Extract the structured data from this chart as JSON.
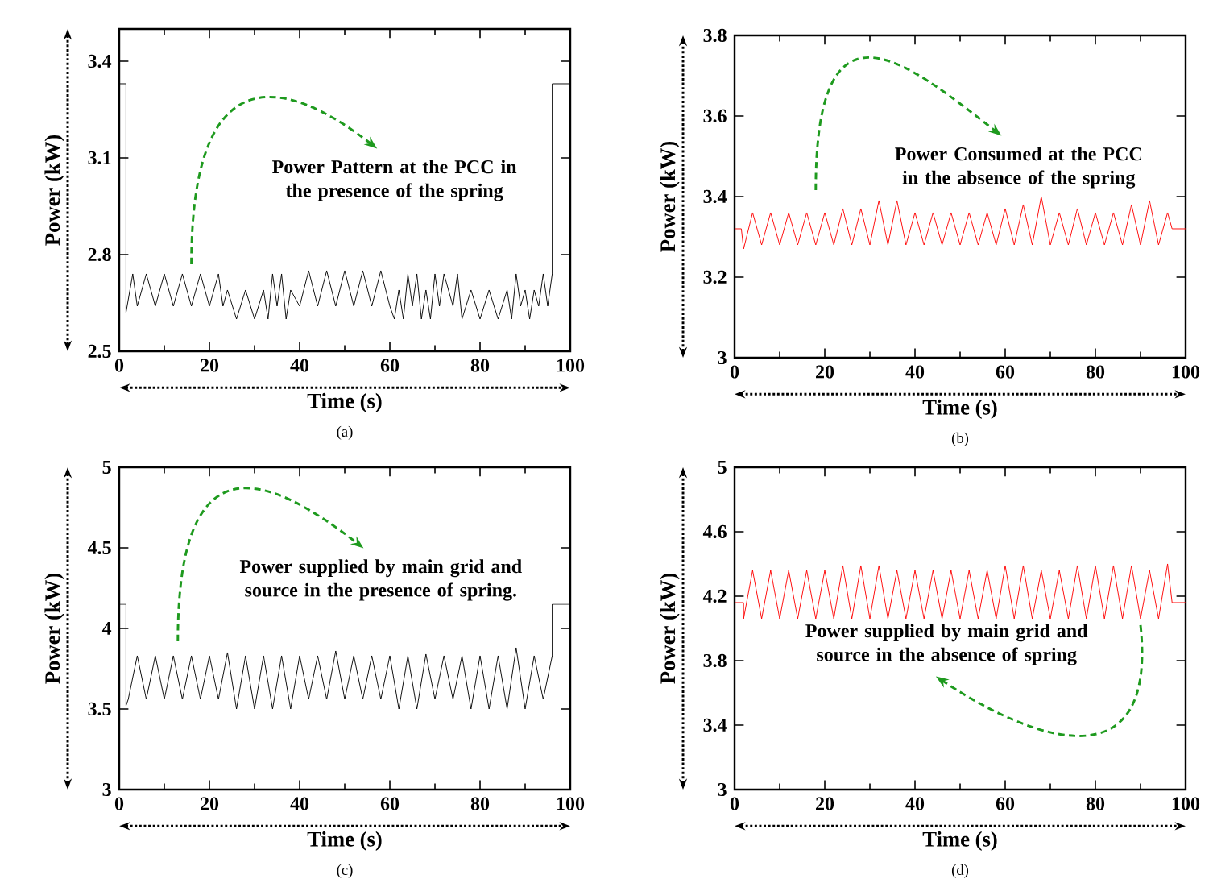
{
  "chart_data": [
    {
      "type": "line",
      "xlabel": "Time (s)",
      "ylabel": "Power (kW)",
      "xlim": [
        0,
        100
      ],
      "ylim": [
        2.5,
        3.5
      ],
      "xticks": [
        0,
        20,
        40,
        60,
        80,
        100
      ],
      "yticks": [
        2.5,
        2.8,
        3.1,
        3.4
      ],
      "series": [
        {
          "color": "#000000",
          "x": [
            0,
            1.5,
            1.5,
            3,
            4,
            6,
            8,
            10,
            12,
            14,
            16,
            18,
            20,
            22,
            23,
            24,
            26,
            28,
            30,
            32,
            33,
            34,
            35,
            36,
            37,
            38,
            40,
            42,
            44,
            46,
            48,
            50,
            52,
            54,
            56,
            58,
            60,
            61,
            62,
            63,
            64,
            65,
            66,
            67,
            68,
            69,
            70,
            71,
            72,
            74,
            75,
            76,
            78,
            80,
            82,
            84,
            86,
            87,
            88,
            89,
            90,
            91,
            92,
            93,
            94,
            95,
            96,
            96,
            100
          ],
          "values": [
            3.33,
            3.33,
            2.62,
            2.74,
            2.64,
            2.74,
            2.64,
            2.74,
            2.64,
            2.74,
            2.64,
            2.74,
            2.64,
            2.74,
            2.64,
            2.69,
            2.6,
            2.69,
            2.6,
            2.69,
            2.6,
            2.74,
            2.64,
            2.74,
            2.6,
            2.69,
            2.64,
            2.75,
            2.64,
            2.75,
            2.64,
            2.75,
            2.64,
            2.75,
            2.64,
            2.75,
            2.64,
            2.6,
            2.69,
            2.6,
            2.74,
            2.64,
            2.74,
            2.6,
            2.69,
            2.6,
            2.74,
            2.64,
            2.74,
            2.64,
            2.74,
            2.6,
            2.69,
            2.6,
            2.69,
            2.6,
            2.69,
            2.6,
            2.74,
            2.64,
            2.69,
            2.6,
            2.69,
            2.64,
            2.74,
            2.64,
            2.74,
            3.33,
            3.33
          ]
        }
      ],
      "annotations": [
        "Power Pattern at the PCC in the presence of the spring",
        "(a)"
      ]
    },
    {
      "type": "line",
      "xlabel": "Time (s)",
      "ylabel": "Power (kW)",
      "xlim": [
        0,
        100
      ],
      "ylim": [
        3,
        3.8
      ],
      "xticks": [
        0,
        20,
        40,
        60,
        80,
        100
      ],
      "yticks": [
        3,
        3.2,
        3.4,
        3.6,
        3.8
      ],
      "series": [
        {
          "color": "#ff0000",
          "x": [
            0,
            1.5,
            2,
            4,
            6,
            8,
            10,
            12,
            14,
            16,
            18,
            20,
            22,
            24,
            26,
            28,
            30,
            32,
            34,
            36,
            38,
            40,
            42,
            44,
            46,
            48,
            50,
            52,
            54,
            56,
            58,
            60,
            62,
            64,
            66,
            68,
            70,
            72,
            74,
            76,
            78,
            80,
            82,
            84,
            86,
            88,
            90,
            92,
            94,
            96,
            97,
            100
          ],
          "values": [
            3.32,
            3.32,
            3.27,
            3.36,
            3.28,
            3.36,
            3.28,
            3.36,
            3.28,
            3.36,
            3.28,
            3.36,
            3.28,
            3.37,
            3.28,
            3.37,
            3.28,
            3.39,
            3.28,
            3.39,
            3.28,
            3.36,
            3.28,
            3.36,
            3.28,
            3.36,
            3.28,
            3.36,
            3.28,
            3.36,
            3.28,
            3.37,
            3.28,
            3.38,
            3.28,
            3.4,
            3.28,
            3.36,
            3.28,
            3.37,
            3.28,
            3.36,
            3.28,
            3.36,
            3.28,
            3.38,
            3.28,
            3.39,
            3.28,
            3.36,
            3.32,
            3.32
          ]
        }
      ],
      "annotations": [
        "Power Consumed at the PCC in the absence of the spring",
        "(b)"
      ]
    },
    {
      "type": "line",
      "xlabel": "Time (s)",
      "ylabel": "Power (kW)",
      "xlim": [
        0,
        100
      ],
      "ylim": [
        3,
        5
      ],
      "xticks": [
        0,
        20,
        40,
        60,
        80,
        100
      ],
      "yticks": [
        3,
        3.5,
        4,
        4.5,
        5
      ],
      "series": [
        {
          "color": "#000000",
          "x": [
            0,
            1.5,
            1.5,
            2,
            4,
            6,
            8,
            10,
            12,
            14,
            16,
            18,
            20,
            22,
            24,
            26,
            28,
            30,
            32,
            34,
            36,
            38,
            40,
            42,
            44,
            46,
            48,
            50,
            52,
            54,
            56,
            58,
            60,
            62,
            64,
            66,
            68,
            70,
            72,
            74,
            76,
            78,
            80,
            82,
            84,
            86,
            88,
            90,
            92,
            94,
            96,
            96,
            100
          ],
          "values": [
            4.15,
            4.15,
            3.52,
            3.56,
            3.83,
            3.56,
            3.83,
            3.56,
            3.83,
            3.56,
            3.83,
            3.56,
            3.83,
            3.56,
            3.85,
            3.5,
            3.83,
            3.5,
            3.83,
            3.5,
            3.83,
            3.5,
            3.83,
            3.56,
            3.83,
            3.56,
            3.86,
            3.56,
            3.83,
            3.56,
            3.83,
            3.56,
            3.83,
            3.5,
            3.83,
            3.5,
            3.84,
            3.56,
            3.83,
            3.56,
            3.83,
            3.5,
            3.83,
            3.5,
            3.83,
            3.5,
            3.88,
            3.5,
            3.83,
            3.56,
            3.83,
            4.15,
            4.15
          ]
        }
      ],
      "annotations": [
        "Power supplied by main grid and source in the presence of spring.",
        "(c)"
      ]
    },
    {
      "type": "line",
      "xlabel": "Time (s)",
      "ylabel": "Power (kW)",
      "xlim": [
        0,
        100
      ],
      "ylim": [
        3,
        5
      ],
      "xticks": [
        0,
        20,
        40,
        60,
        80,
        100
      ],
      "yticks": [
        3,
        3.4,
        3.8,
        4.2,
        4.6,
        5
      ],
      "series": [
        {
          "color": "#ff0000",
          "x": [
            0,
            2,
            2,
            4,
            6,
            8,
            10,
            12,
            14,
            16,
            18,
            20,
            22,
            24,
            26,
            28,
            30,
            32,
            34,
            36,
            38,
            40,
            42,
            44,
            46,
            48,
            50,
            52,
            54,
            56,
            58,
            60,
            62,
            64,
            66,
            68,
            70,
            72,
            74,
            76,
            78,
            80,
            82,
            84,
            86,
            88,
            90,
            92,
            94,
            96,
            97,
            100
          ],
          "values": [
            4.16,
            4.16,
            4.06,
            4.36,
            4.06,
            4.36,
            4.06,
            4.36,
            4.06,
            4.36,
            4.06,
            4.36,
            4.06,
            4.39,
            4.06,
            4.39,
            4.06,
            4.39,
            4.06,
            4.36,
            4.06,
            4.36,
            4.06,
            4.36,
            4.06,
            4.36,
            4.06,
            4.36,
            4.06,
            4.36,
            4.06,
            4.39,
            4.06,
            4.39,
            4.06,
            4.36,
            4.06,
            4.36,
            4.06,
            4.39,
            4.06,
            4.39,
            4.06,
            4.39,
            4.06,
            4.39,
            4.06,
            4.36,
            4.06,
            4.4,
            4.16,
            4.16
          ]
        }
      ],
      "annotations": [
        "Power supplied by main grid and source in the absence of spring",
        "(d)"
      ]
    }
  ]
}
